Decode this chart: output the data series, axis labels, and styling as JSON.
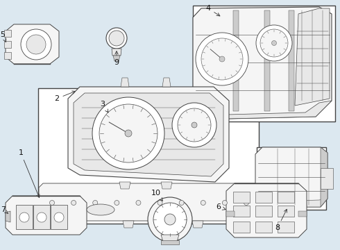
{
  "bg_color": "#dce8f0",
  "line_color": "#444444",
  "fill_light": "#f5f5f5",
  "fill_mid": "#e8e8e8",
  "fill_dark": "#cccccc",
  "white": "#ffffff",
  "label_font": 7,
  "lw_main": 0.7,
  "lw_thin": 0.4,
  "fig_w": 4.9,
  "fig_h": 3.6,
  "dpi": 100
}
